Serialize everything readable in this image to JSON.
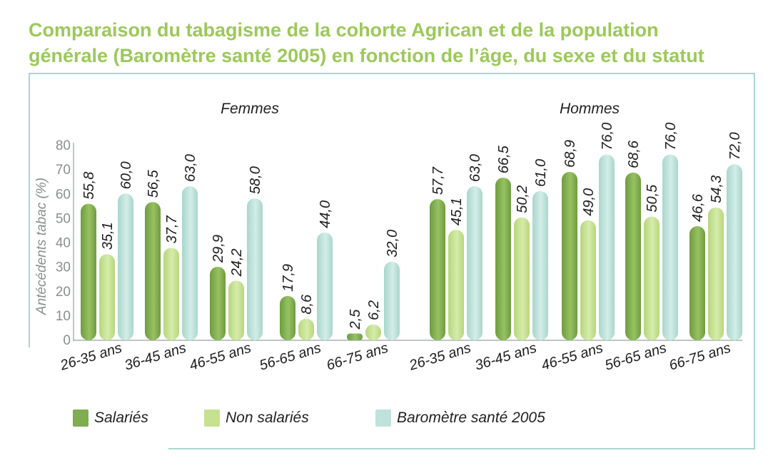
{
  "title_line1": "Comparaison du tabagisme de la cohorte Agrican et de la population",
  "title_line2": "générale (Baromètre santé 2005) en fonction de l’âge, du sexe et du statut",
  "chart_data": {
    "type": "bar",
    "ylabel": "Antécédents tabac (%)",
    "ylim": [
      0,
      80
    ],
    "yticks": [
      0,
      10,
      20,
      30,
      40,
      50,
      60,
      70,
      80
    ],
    "groups": [
      {
        "name": "Femmes",
        "categories": [
          "26-35 ans",
          "36-45 ans",
          "46-55 ans",
          "56-65 ans",
          "66-75 ans"
        ],
        "series": [
          {
            "name": "Salariés",
            "values": [
              55.8,
              56.5,
              29.9,
              17.9,
              2.5
            ]
          },
          {
            "name": "Non salariés",
            "values": [
              35.1,
              37.7,
              24.2,
              8.6,
              6.2
            ]
          },
          {
            "name": "Baromètre santé 2005",
            "values": [
              60.0,
              63.0,
              58.0,
              44.0,
              32.0
            ]
          }
        ]
      },
      {
        "name": "Hommes",
        "categories": [
          "26-35 ans",
          "36-45 ans",
          "46-55 ans",
          "56-65 ans",
          "66-75 ans"
        ],
        "series": [
          {
            "name": "Salariés",
            "values": [
              57.7,
              66.5,
              68.9,
              68.6,
              46.6
            ]
          },
          {
            "name": "Non salariés",
            "values": [
              45.1,
              50.2,
              49.0,
              50.5,
              54.3
            ]
          },
          {
            "name": "Baromètre santé 2005",
            "values": [
              63.0,
              61.0,
              76.0,
              76.0,
              72.0
            ]
          }
        ]
      }
    ],
    "value_labels": {
      "Femmes": [
        [
          "55,8",
          "35,1",
          "60,0"
        ],
        [
          "56,5",
          "37,7",
          "63,0"
        ],
        [
          "29,9",
          "24,2",
          "58,0"
        ],
        [
          "17,9",
          "8,6",
          "44,0"
        ],
        [
          "2,5",
          "6,2",
          "32,0"
        ]
      ],
      "Hommes": [
        [
          "57,7",
          "45,1",
          "63,0"
        ],
        [
          "66,5",
          "50,2",
          "61,0"
        ],
        [
          "68,9",
          "49,0",
          "76,0"
        ],
        [
          "68,6",
          "50,5",
          "76,0"
        ],
        [
          "46,6",
          "54,3",
          "72,0"
        ]
      ]
    },
    "legend": [
      "Salariés",
      "Non salariés",
      "Baromètre santé 2005"
    ],
    "colors": {
      "Salariés": "#7fad4f",
      "Non salariés": "#c6e190",
      "Baromètre santé 2005": "#bfe2da"
    }
  }
}
